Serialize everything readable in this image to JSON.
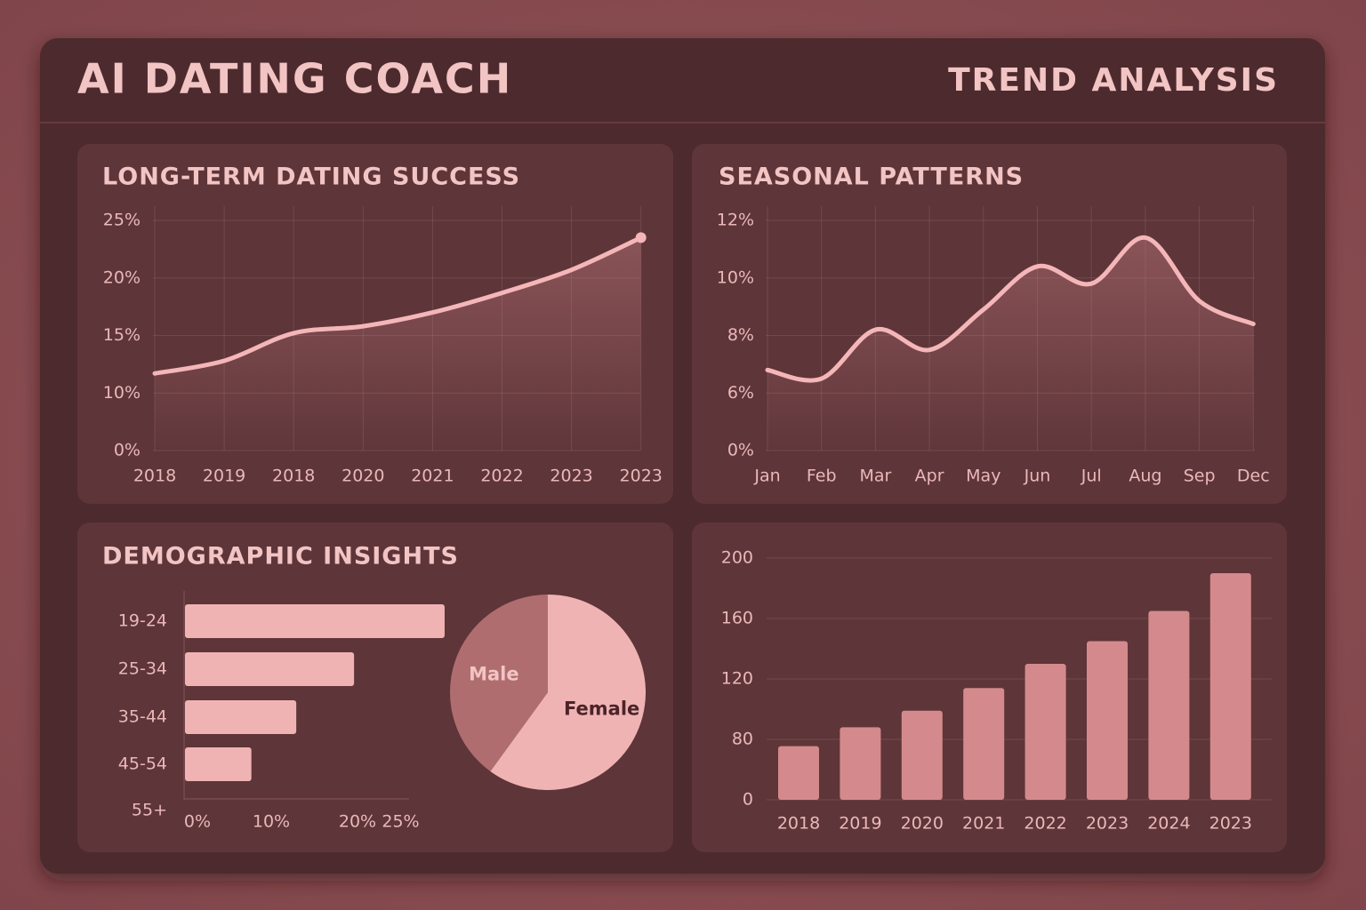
{
  "header": {
    "title": "AI DATING COACH",
    "section": "TREND ANALYSIS"
  },
  "chart_data": [
    {
      "type": "line",
      "title": "LONG-TERM DATING SUCCESS",
      "color": "#f4b6b8",
      "grid": true,
      "categories": [
        "2018",
        "2019",
        "2018",
        "2020",
        "2021",
        "2022",
        "2023",
        "2023"
      ],
      "values": [
        11.7,
        12.8,
        15.2,
        15.8,
        17.0,
        18.7,
        20.7,
        23.5
      ],
      "ylim": [
        0,
        25
      ],
      "yticks": [
        {
          "value": 0,
          "label": "0%"
        },
        {
          "value": 10,
          "label": "10%"
        },
        {
          "value": 15,
          "label": "15%"
        },
        {
          "value": 20,
          "label": "20%"
        },
        {
          "value": 25,
          "label": "25%"
        }
      ]
    },
    {
      "type": "line",
      "title": "SEASONAL PATTERNS",
      "color": "#f4b6b8",
      "grid": true,
      "categories": [
        "Jan",
        "Feb",
        "Mar",
        "Apr",
        "May",
        "Jun",
        "Jul",
        "Aug",
        "Sep",
        "Dec"
      ],
      "values": [
        6.8,
        6.5,
        8.2,
        7.5,
        8.9,
        10.4,
        9.8,
        11.4,
        9.2,
        8.4
      ],
      "ylim": [
        0,
        12
      ],
      "yticks": [
        {
          "value": 0,
          "label": "0%"
        },
        {
          "value": 6,
          "label": "6%"
        },
        {
          "value": 8,
          "label": "8%"
        },
        {
          "value": 10,
          "label": "10%"
        },
        {
          "value": 12,
          "label": "12%"
        }
      ]
    },
    {
      "type": "barh",
      "title": "DEMOGRAPHIC INSIGHTS",
      "color": "#f0b3b4",
      "categories": [
        "19-24",
        "25-34",
        "35-44",
        "45-54",
        "55+"
      ],
      "values": [
        30.1,
        19.6,
        12.9,
        7.7,
        0
      ],
      "xlim": [
        0,
        30
      ],
      "xticks": [
        {
          "value": 0,
          "label": "0%"
        },
        {
          "value": 10,
          "label": "10%"
        },
        {
          "value": 20,
          "label": "20%"
        },
        {
          "value": 25,
          "label": "25%"
        }
      ]
    },
    {
      "type": "pie",
      "categories": [
        "Female",
        "Male"
      ],
      "values": [
        60,
        40
      ],
      "colors": [
        "#f0b3b4",
        "#b06d6f"
      ]
    },
    {
      "type": "bar",
      "color": "#d48a8c",
      "grid": true,
      "categories": [
        "2018",
        "2019",
        "2020",
        "2021",
        "2022",
        "2023",
        "2024",
        "2023"
      ],
      "values": [
        71,
        88,
        99,
        114,
        130,
        145,
        165,
        190
      ],
      "ylim": [
        0,
        200
      ],
      "yticks": [
        0,
        80,
        120,
        160,
        200
      ]
    }
  ]
}
